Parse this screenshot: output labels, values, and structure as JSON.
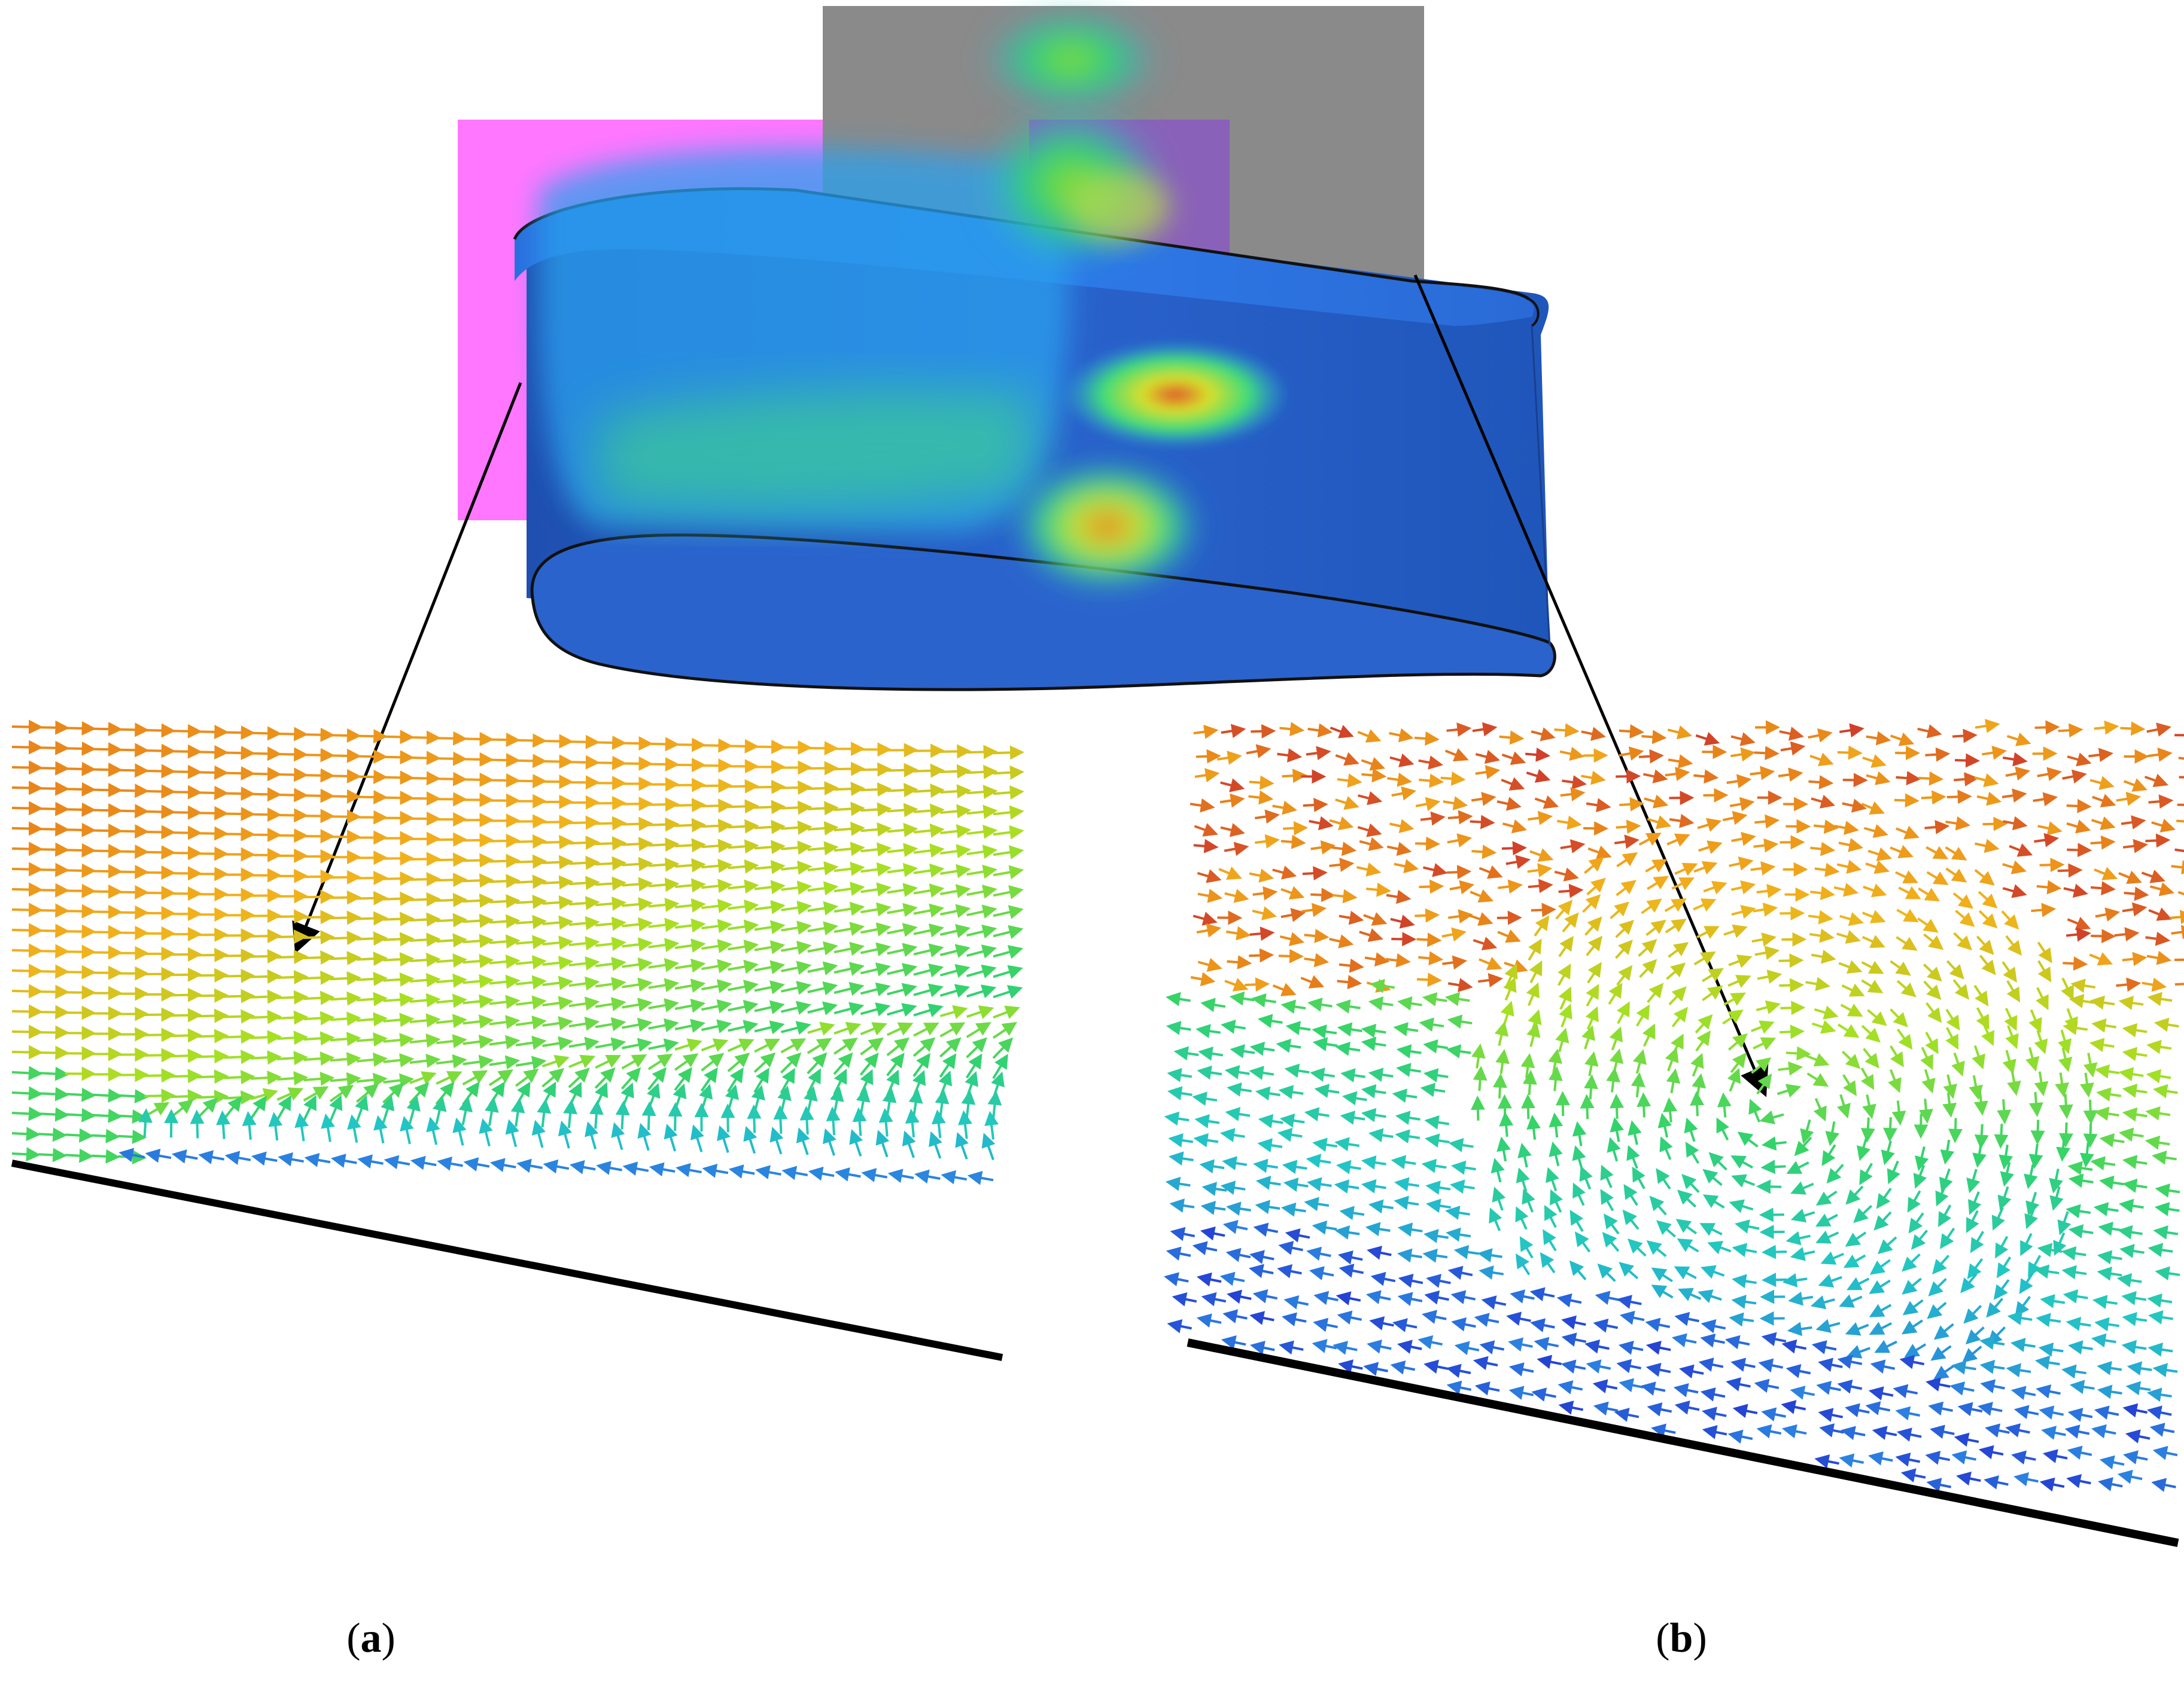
{
  "panels": [
    {
      "id": "a",
      "label": "a",
      "open": "(",
      "close": ")"
    },
    {
      "id": "b",
      "label": "b",
      "open": "(",
      "close": ")"
    }
  ],
  "colors": {
    "background": "#ffffff",
    "airfoil_top": "#2f7be6",
    "airfoil_side": "#2a63c9",
    "airfoil_edge": "#111111",
    "slice_a": "#ff77ff",
    "slice_b": "#8a8a8a",
    "wall": "#000000",
    "vector_colormap": [
      "#2222cc",
      "#2b7fe0",
      "#22c6c6",
      "#33d36b",
      "#a6e022",
      "#f2b21b",
      "#e8831a",
      "#d0402a"
    ]
  },
  "icons": {
    "slice_a": "magenta-slice-plane",
    "slice_b": "gray-slice-plane",
    "callout": "arrow-callout"
  }
}
